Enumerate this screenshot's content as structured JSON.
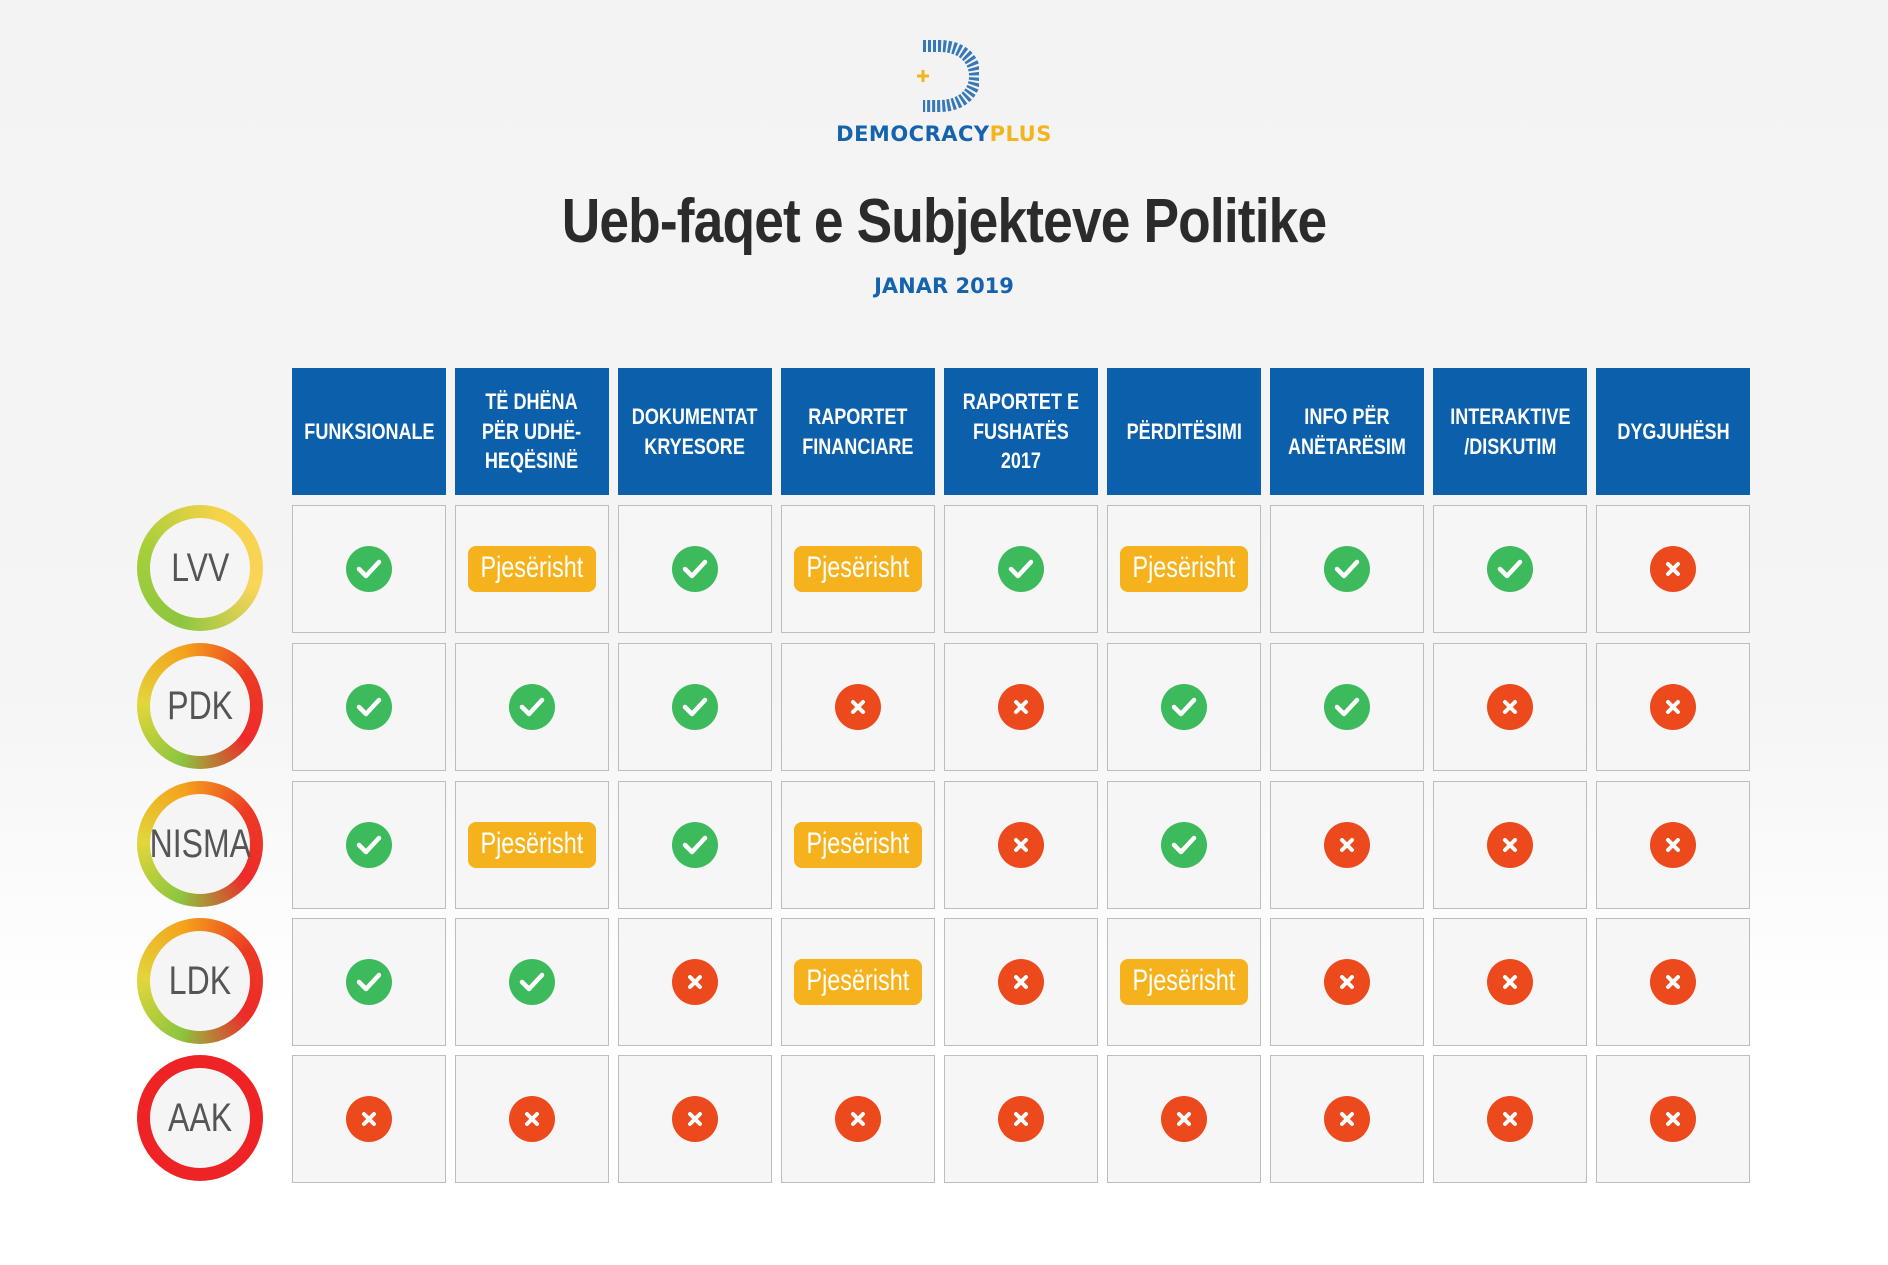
{
  "header": {
    "brand_part1": "DEMOCRACY",
    "brand_part2": "PLUS",
    "title": "Ueb-faqet e Subjekteve Politike",
    "subtitle": "JANAR 2019"
  },
  "columns": [
    "FUNKSIONALE",
    "TË DHËNA\nPËR UDHË-\nHEQËSINË",
    "DOKUMENTAT\nKRYESORE",
    "RAPORTET\nFINANCIARE",
    "RAPORTET E\nFUSHATËS\n2017",
    "PËRDITËSIMI",
    "INFO PËR\nANËTARËSIM",
    "INTERAKTIVE\n/DISKUTIM",
    "DYGJUHËSH"
  ],
  "partial_label": "Pjesërisht",
  "colors": {
    "blue": "#0b5fab",
    "yes": "#3dbb5c",
    "no": "#ec4a1d",
    "partial": "#f5b21c",
    "brand_yellow": "#f2b51d"
  },
  "rows": [
    {
      "party": "LVV",
      "ring": "green-yellow",
      "cells": [
        "yes",
        "partial",
        "yes",
        "partial",
        "yes",
        "partial",
        "yes",
        "yes",
        "no"
      ]
    },
    {
      "party": "PDK",
      "ring": "green-red",
      "cells": [
        "yes",
        "yes",
        "yes",
        "no",
        "no",
        "yes",
        "yes",
        "no",
        "no"
      ]
    },
    {
      "party": "NISMA",
      "ring": "green-red",
      "cells": [
        "yes",
        "partial",
        "yes",
        "partial",
        "no",
        "yes",
        "no",
        "no",
        "no"
      ]
    },
    {
      "party": "LDK",
      "ring": "green-red",
      "cells": [
        "yes",
        "yes",
        "no",
        "partial",
        "no",
        "partial",
        "no",
        "no",
        "no"
      ]
    },
    {
      "party": "AAK",
      "ring": "red",
      "cells": [
        "no",
        "no",
        "no",
        "no",
        "no",
        "no",
        "no",
        "no",
        "no"
      ]
    }
  ]
}
